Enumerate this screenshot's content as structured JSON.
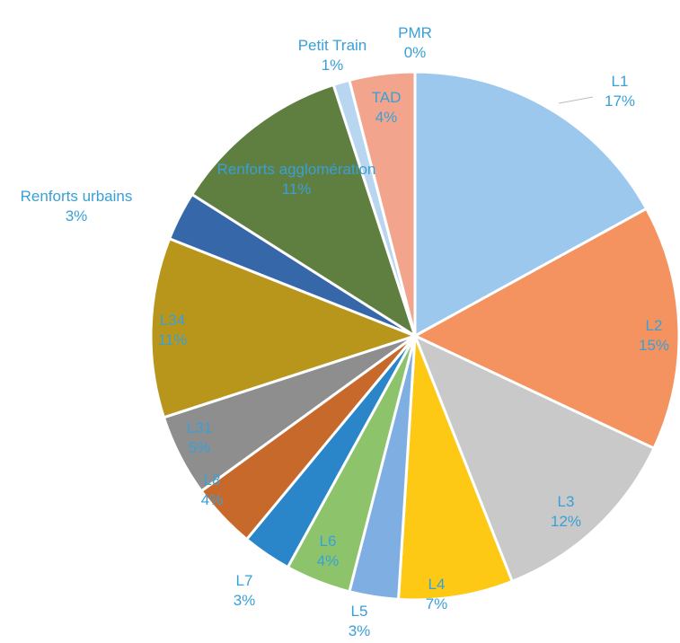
{
  "chart_data": {
    "type": "pie",
    "categories": [
      "L1",
      "L2",
      "L3",
      "L4",
      "L5",
      "L6",
      "L7",
      "L8",
      "L31",
      "L34",
      "Renforts urbains",
      "Renforts agglomération",
      "Petit Train",
      "PMR",
      "TAD"
    ],
    "values": [
      17,
      15,
      12,
      7,
      3,
      4,
      3,
      4,
      5,
      11,
      3,
      11,
      1,
      0,
      4
    ],
    "value_labels": [
      "17%",
      "15%",
      "12%",
      "7%",
      "3%",
      "4%",
      "3%",
      "4%",
      "5%",
      "11%",
      "3%",
      "11%",
      "1%",
      "0%",
      "4%"
    ],
    "colors": [
      "#9dc8ee",
      "#f4935f",
      "#c9c9c9",
      "#fdc915",
      "#7eaee2",
      "#8dc46b",
      "#2a86c8",
      "#c8692c",
      "#8e8e8e",
      "#b8961c",
      "#3667a8",
      "#5f7f40",
      "#b9d6f0",
      "#eeeeee",
      "#f2a58c"
    ]
  }
}
